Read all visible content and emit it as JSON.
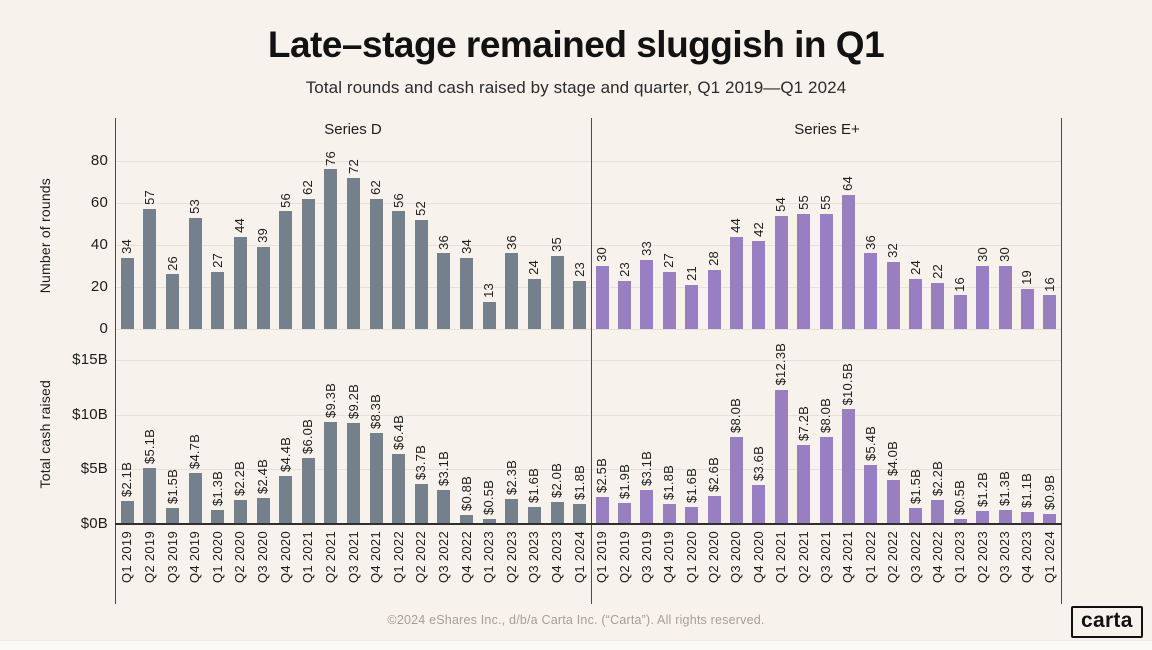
{
  "page": {
    "title": "Late–stage remained sluggish in Q1",
    "subtitle": "Total rounds and cash raised by stage and quarter, Q1 2019—Q1 2024",
    "footer": "©2024 eShares Inc., d/b/a Carta Inc. (“Carta”). All rights reserved.",
    "logo_text": "carta"
  },
  "colors": {
    "background": "#f7f3ec",
    "series_d_bar": "#74808c",
    "series_e_plus_bar": "#987fc2",
    "gridline": "#e7e2d9",
    "axis_line": "#4a4a47",
    "text": "#1d1d1d",
    "footer_text": "#a49e94"
  },
  "chart_data": {
    "type": "bar",
    "title": "Late–stage remained sluggish in Q1",
    "subtitle": "Total rounds and cash raised by stage and quarter, Q1 2019—Q1 2024",
    "grid": true,
    "legend_position": "none",
    "panels": [
      {
        "title": "Series D"
      },
      {
        "title": "Series E+"
      }
    ],
    "categories": [
      "Q1 2019",
      "Q2 2019",
      "Q3 2019",
      "Q4 2019",
      "Q1 2020",
      "Q2 2020",
      "Q3 2020",
      "Q4 2020",
      "Q1 2021",
      "Q2 2021",
      "Q3 2021",
      "Q4 2021",
      "Q1 2022",
      "Q2 2022",
      "Q3 2022",
      "Q4 2022",
      "Q1 2023",
      "Q2 2023",
      "Q3 2023",
      "Q4 2023",
      "Q1 2024"
    ],
    "rows": [
      {
        "axis_label": "Number of rounds",
        "ylim": [
          0,
          85
        ],
        "yticks": [
          {
            "label": "0",
            "value": 0
          },
          {
            "label": "20",
            "value": 20
          },
          {
            "label": "40",
            "value": 40
          },
          {
            "label": "60",
            "value": 60
          },
          {
            "label": "80",
            "value": 80
          }
        ],
        "series": [
          {
            "name": "Series D",
            "color": "#74808c",
            "values": [
              34,
              57,
              26,
              53,
              27,
              44,
              39,
              56,
              62,
              76,
              72,
              62,
              56,
              52,
              36,
              34,
              13,
              36,
              24,
              35,
              23
            ],
            "labels": [
              "34",
              "57",
              "26",
              "53",
              "27",
              "44",
              "39",
              "56",
              "62",
              "76",
              "72",
              "62",
              "56",
              "52",
              "36",
              "34",
              "13",
              "36",
              "24",
              "35",
              "23"
            ]
          },
          {
            "name": "Series E+",
            "color": "#987fc2",
            "values": [
              30,
              23,
              33,
              27,
              21,
              28,
              44,
              42,
              54,
              55,
              55,
              64,
              36,
              32,
              24,
              22,
              16,
              30,
              30,
              19,
              16
            ],
            "labels": [
              "30",
              "23",
              "33",
              "27",
              "21",
              "28",
              "44",
              "42",
              "54",
              "55",
              "55",
              "64",
              "36",
              "32",
              "24",
              "22",
              "16",
              "30",
              "30",
              "19",
              "16"
            ]
          }
        ]
      },
      {
        "axis_label": "Total cash raised",
        "ylim": [
          0,
          15.8
        ],
        "yticks": [
          {
            "label": "$0B",
            "value": 0
          },
          {
            "label": "$5B",
            "value": 5
          },
          {
            "label": "$10B",
            "value": 10
          },
          {
            "label": "$15B",
            "value": 15
          }
        ],
        "series": [
          {
            "name": "Series D",
            "color": "#74808c",
            "values": [
              2.1,
              5.1,
              1.5,
              4.7,
              1.3,
              2.2,
              2.4,
              4.4,
              6.0,
              9.3,
              9.2,
              8.3,
              6.4,
              3.7,
              3.1,
              0.8,
              0.5,
              2.3,
              1.6,
              2.0,
              1.8
            ],
            "labels": [
              "$2.1B",
              "$5.1B",
              "$1.5B",
              "$4.7B",
              "$1.3B",
              "$2.2B",
              "$2.4B",
              "$4.4B",
              "$6.0B",
              "$9.3B",
              "$9.2B",
              "$8.3B",
              "$6.4B",
              "$3.7B",
              "$3.1B",
              "$0.8B",
              "$0.5B",
              "$2.3B",
              "$1.6B",
              "$2.0B",
              "$1.8B"
            ]
          },
          {
            "name": "Series E+",
            "color": "#987fc2",
            "values": [
              2.5,
              1.9,
              3.1,
              1.8,
              1.6,
              2.6,
              8.0,
              3.6,
              12.3,
              7.2,
              8.0,
              10.5,
              5.4,
              4.0,
              1.5,
              2.2,
              0.5,
              1.2,
              1.3,
              1.1,
              0.9
            ],
            "labels": [
              "$2.5B",
              "$1.9B",
              "$3.1B",
              "$1.8B",
              "$1.6B",
              "$2.6B",
              "$8.0B",
              "$3.6B",
              "$12.3B",
              "$7.2B",
              "$8.0B",
              "$10.5B",
              "$5.4B",
              "$4.0B",
              "$1.5B",
              "$2.2B",
              "$0.5B",
              "$1.2B",
              "$1.3B",
              "$1.1B",
              "$0.9B"
            ]
          }
        ]
      }
    ]
  }
}
